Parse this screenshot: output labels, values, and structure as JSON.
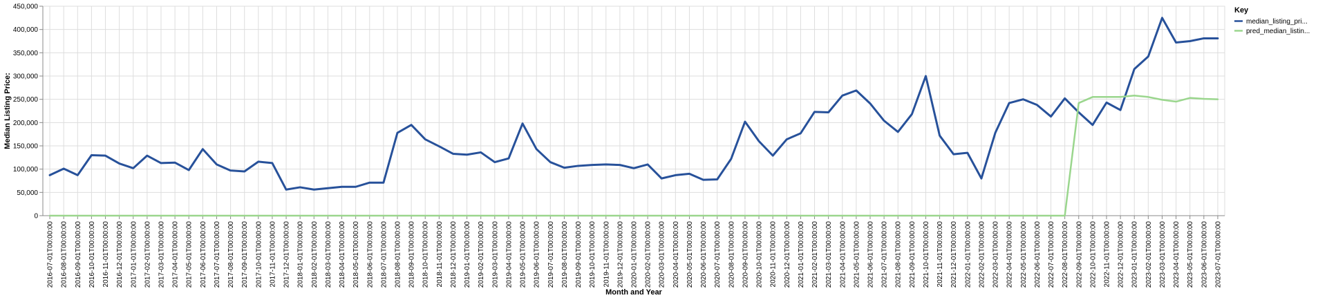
{
  "chart_data": {
    "type": "line",
    "xlabel": "Month and Year",
    "ylabel": "Median Listing Price:",
    "ylim": [
      0,
      450000
    ],
    "yticks": [
      "0",
      "50,000",
      "100,000",
      "150,000",
      "200,000",
      "250,000",
      "300,000",
      "350,000",
      "400,000",
      "450,000"
    ],
    "ytick_values": [
      0,
      50000,
      100000,
      150000,
      200000,
      250000,
      300000,
      350000,
      400000,
      450000
    ],
    "grid": true,
    "legend_title": "Key",
    "legend_placement": "top-right",
    "x": [
      "2016-07-01T00:00:00",
      "2016-08-01T00:00:00",
      "2016-09-01T00:00:00",
      "2016-10-01T00:00:00",
      "2016-11-01T00:00:00",
      "2016-12-01T00:00:00",
      "2017-01-01T00:00:00",
      "2017-02-01T00:00:00",
      "2017-03-01T00:00:00",
      "2017-04-01T00:00:00",
      "2017-05-01T00:00:00",
      "2017-06-01T00:00:00",
      "2017-07-01T00:00:00",
      "2017-08-01T00:00:00",
      "2017-09-01T00:00:00",
      "2017-10-01T00:00:00",
      "2017-11-01T00:00:00",
      "2017-12-01T00:00:00",
      "2018-01-01T00:00:00",
      "2018-02-01T00:00:00",
      "2018-03-01T00:00:00",
      "2018-04-01T00:00:00",
      "2018-05-01T00:00:00",
      "2018-06-01T00:00:00",
      "2018-07-01T00:00:00",
      "2018-08-01T00:00:00",
      "2018-09-01T00:00:00",
      "2018-10-01T00:00:00",
      "2018-11-01T00:00:00",
      "2018-12-01T00:00:00",
      "2019-01-01T00:00:00",
      "2019-02-01T00:00:00",
      "2019-03-01T00:00:00",
      "2019-04-01T00:00:00",
      "2019-05-01T00:00:00",
      "2019-06-01T00:00:00",
      "2019-07-01T00:00:00",
      "2019-08-01T00:00:00",
      "2019-09-01T00:00:00",
      "2019-10-01T00:00:00",
      "2019-11-01T00:00:00",
      "2019-12-01T00:00:00",
      "2020-01-01T00:00:00",
      "2020-02-01T00:00:00",
      "2020-03-01T00:00:00",
      "2020-04-01T00:00:00",
      "2020-05-01T00:00:00",
      "2020-06-01T00:00:00",
      "2020-07-01T00:00:00",
      "2020-08-01T00:00:00",
      "2020-09-01T00:00:00",
      "2020-10-01T00:00:00",
      "2020-11-01T00:00:00",
      "2020-12-01T00:00:00",
      "2021-01-01T00:00:00",
      "2021-02-01T00:00:00",
      "2021-03-01T00:00:00",
      "2021-04-01T00:00:00",
      "2021-05-01T00:00:00",
      "2021-06-01T00:00:00",
      "2021-07-01T00:00:00",
      "2021-08-01T00:00:00",
      "2021-09-01T00:00:00",
      "2021-10-01T00:00:00",
      "2021-11-01T00:00:00",
      "2021-12-01T00:00:00",
      "2022-01-01T00:00:00",
      "2022-02-01T00:00:00",
      "2022-03-01T00:00:00",
      "2022-04-01T00:00:00",
      "2022-05-01T00:00:00",
      "2022-06-01T00:00:00",
      "2022-07-01T00:00:00",
      "2022-08-01T00:00:00",
      "2022-09-01T00:00:00",
      "2022-10-01T00:00:00",
      "2022-11-01T00:00:00",
      "2022-12-01T00:00:00",
      "2023-01-01T00:00:00",
      "2023-02-01T00:00:00",
      "2023-03-01T00:00:00",
      "2023-04-01T00:00:00",
      "2023-05-01T00:00:00",
      "2023-06-01T00:00:00",
      "2023-07-01T00:00:00"
    ],
    "series": [
      {
        "name": "median_listing_pri...",
        "color": "#27519a",
        "values": [
          87000,
          101000,
          87000,
          130000,
          129000,
          112000,
          102000,
          129000,
          113000,
          114000,
          98000,
          143000,
          110000,
          97000,
          95000,
          116000,
          113000,
          56000,
          61000,
          56000,
          59000,
          62000,
          62000,
          71000,
          71000,
          178000,
          195000,
          164000,
          149000,
          133000,
          131000,
          136000,
          115000,
          123000,
          198000,
          143000,
          115000,
          103000,
          107000,
          109000,
          110000,
          109000,
          102000,
          110000,
          80000,
          87000,
          90000,
          77000,
          78000,
          122000,
          202000,
          160000,
          129000,
          164000,
          177000,
          223000,
          222000,
          258000,
          269000,
          241000,
          204000,
          180000,
          218000,
          300000,
          172000,
          132000,
          135000,
          80000,
          178000,
          242000,
          250000,
          238000,
          213000,
          252000,
          222000,
          195000,
          243000,
          227000,
          315000,
          342000,
          425000,
          372000,
          375000,
          381000,
          381000
        ]
      },
      {
        "name": "pred_median_listin...",
        "color": "#9ad68d",
        "values": [
          0,
          0,
          0,
          0,
          0,
          0,
          0,
          0,
          0,
          0,
          0,
          0,
          0,
          0,
          0,
          0,
          0,
          0,
          0,
          0,
          0,
          0,
          0,
          0,
          0,
          0,
          0,
          0,
          0,
          0,
          0,
          0,
          0,
          0,
          0,
          0,
          0,
          0,
          0,
          0,
          0,
          0,
          0,
          0,
          0,
          0,
          0,
          0,
          0,
          0,
          0,
          0,
          0,
          0,
          0,
          0,
          0,
          0,
          0,
          0,
          0,
          0,
          0,
          0,
          0,
          0,
          0,
          0,
          0,
          0,
          0,
          0,
          0,
          0,
          242000,
          255000,
          255000,
          255000,
          258000,
          255000,
          249000,
          245000,
          253000,
          251000,
          250000
        ]
      }
    ]
  }
}
